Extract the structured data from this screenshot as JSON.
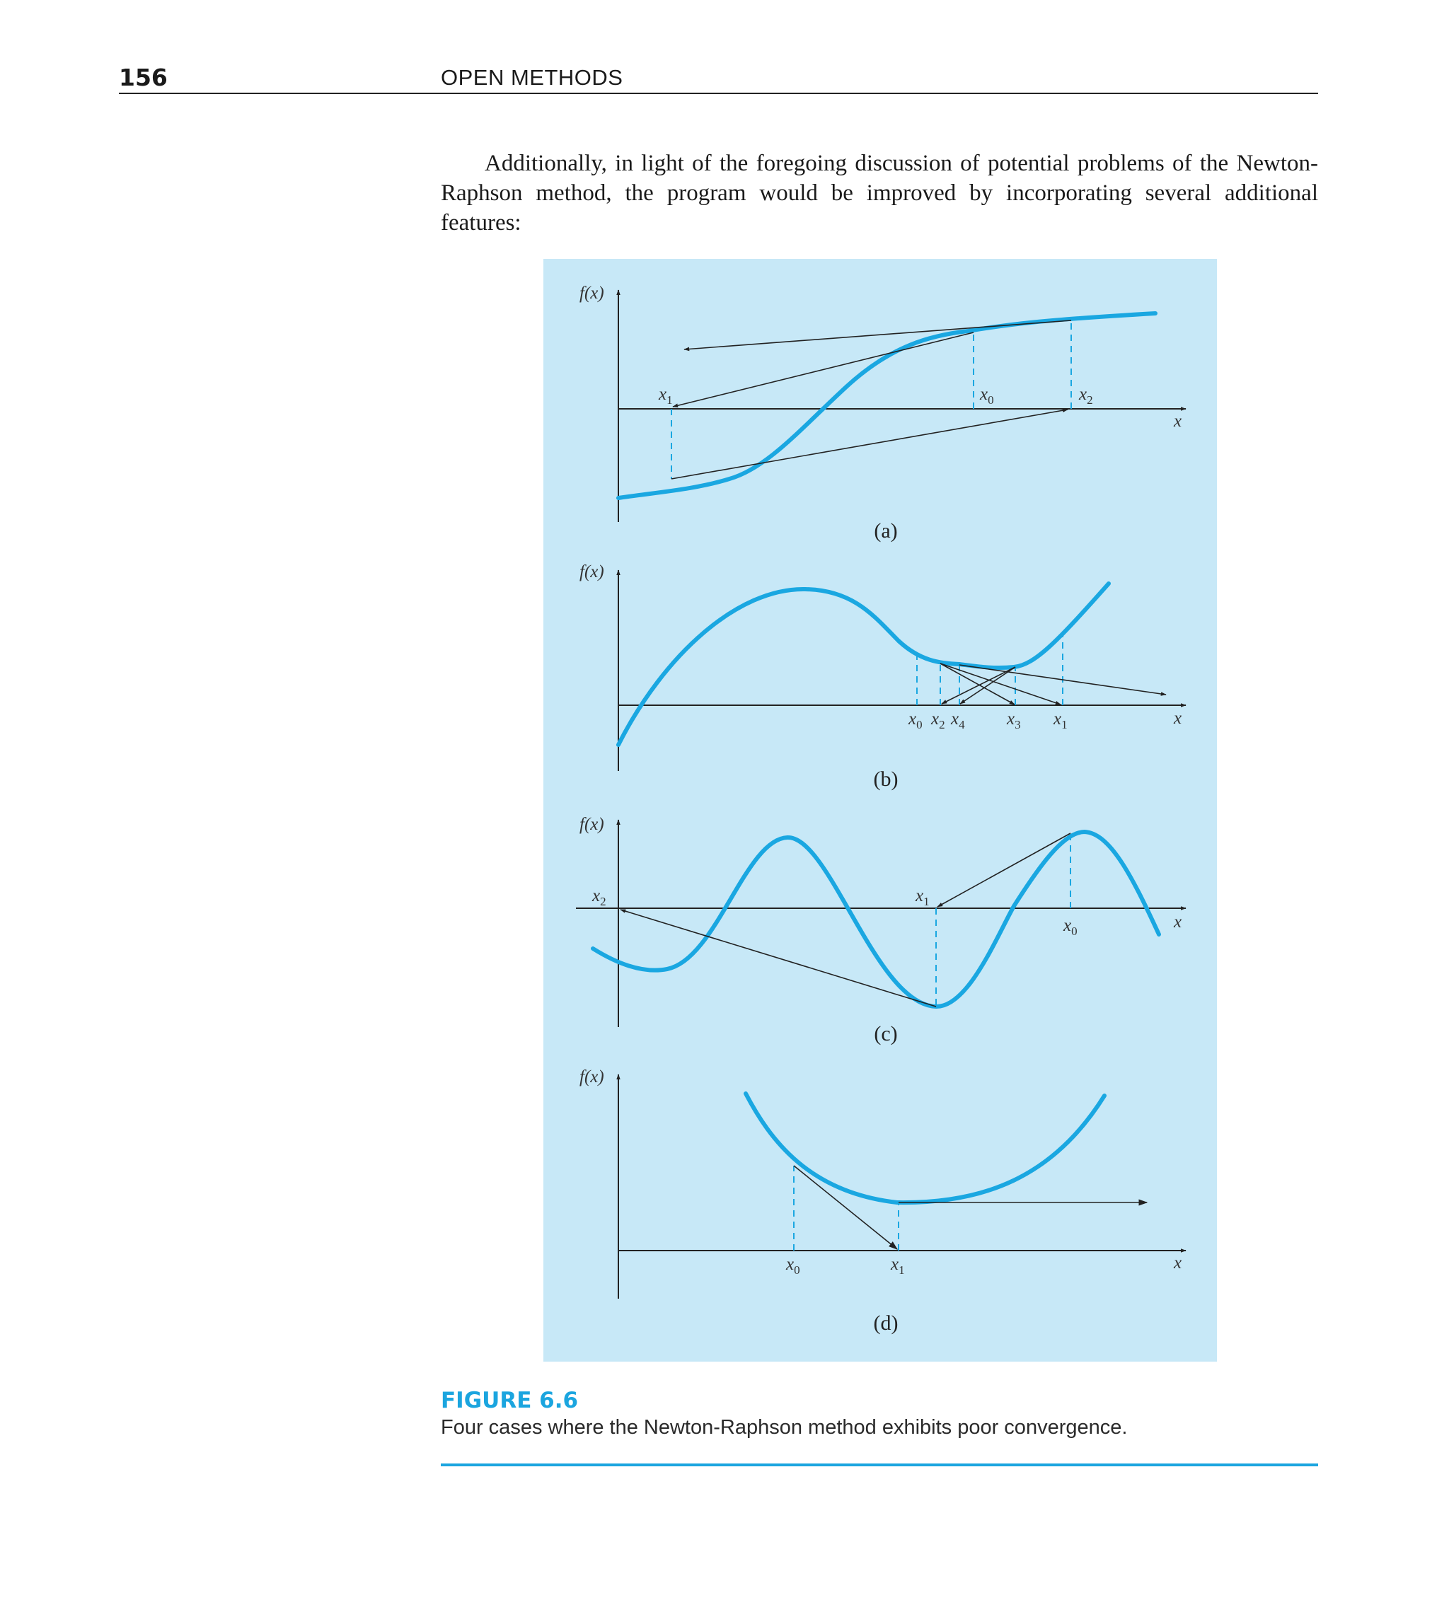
{
  "header": {
    "page_number": "156",
    "running_head": "OPEN METHODS"
  },
  "body": {
    "paragraph": "Additionally, in light of the foregoing discussion of potential problems of the Newton-Raphson method, the program would be improved by incorporating several additional features:"
  },
  "figure": {
    "label": "FIGURE 6.6",
    "caption": "Four cases where the Newton-Raphson method exhibits poor convergence.",
    "accent_color": "#1ba5df",
    "panel_color": "#c7e8f7",
    "curve_color": "#1aa7e1",
    "y_axis_label": "f(x)",
    "x_axis_label": "x",
    "panels": {
      "a": {
        "tag": "(a)",
        "points": [
          "x1",
          "x0",
          "x2"
        ]
      },
      "b": {
        "tag": "(b)",
        "points": [
          "x0",
          "x2",
          "x4",
          "x3",
          "x1"
        ]
      },
      "c": {
        "tag": "(c)",
        "points": [
          "x2",
          "x1",
          "x0"
        ]
      },
      "d": {
        "tag": "(d)",
        "points": [
          "x0",
          "x1"
        ]
      }
    }
  }
}
